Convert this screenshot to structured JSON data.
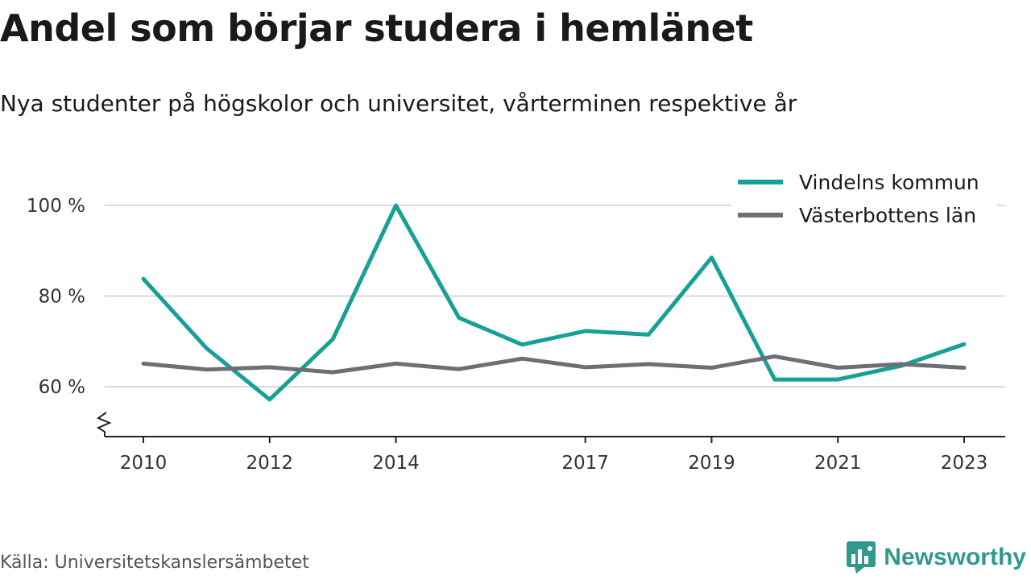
{
  "title": "Andel som börjar studera i hemlänet",
  "subtitle": "Nya studenter på högskolor och universitet, vårterminen respektive år",
  "source": "Källa: Universitetskanslersämbetet",
  "brand": "Newsworthy",
  "brand_icon": "newsworthy-logo-icon",
  "colors": {
    "series_a": "#17a096",
    "series_b": "#6e6e76",
    "grid": "#d9d9d9",
    "axis": "#222222",
    "brand": "#2f9a8c"
  },
  "chart_data": {
    "type": "line",
    "title": "Andel som börjar studera i hemlänet",
    "subtitle": "Nya studenter på högskolor och universitet, vårterminen respektive år",
    "x": [
      2010,
      2011,
      2012,
      2013,
      2014,
      2015,
      2016,
      2017,
      2018,
      2019,
      2020,
      2021,
      2022,
      2023
    ],
    "x_tick_labels": [
      "2010",
      "2012",
      "2014",
      "2017",
      "2019",
      "2021",
      "2023"
    ],
    "y_ticks": [
      60,
      80,
      100
    ],
    "y_tick_labels": [
      "60 %",
      "80 %",
      "100 %"
    ],
    "ylim": [
      49,
      108
    ],
    "y_axis_break": true,
    "grid": true,
    "legend_position": "top-right",
    "series": [
      {
        "name": "Vindelns kommun",
        "color": "#17a096",
        "values": [
          83.8,
          68.5,
          57.2,
          70.5,
          100,
          75.2,
          69.3,
          72.3,
          71.5,
          88.5,
          61.6,
          61.6,
          64.6,
          69.4
        ]
      },
      {
        "name": "Västerbottens län",
        "color": "#6e6e76",
        "values": [
          65.1,
          63.8,
          64.3,
          63.2,
          65.1,
          63.9,
          66.2,
          64.3,
          65.0,
          64.2,
          66.7,
          64.2,
          65.0,
          64.2
        ]
      }
    ]
  }
}
